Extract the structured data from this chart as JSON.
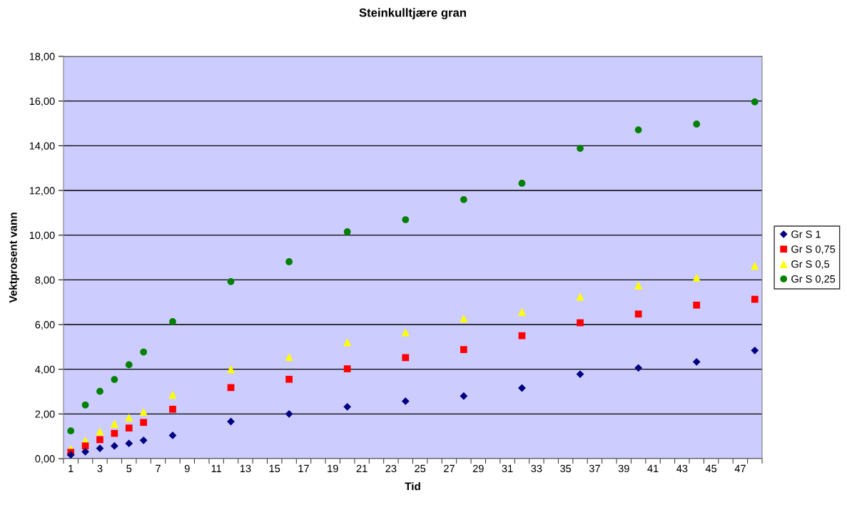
{
  "chart_data": {
    "type": "scatter",
    "title": "Steinkulltjære gran",
    "xlabel": "Tid",
    "ylabel": "Vektprosent vann",
    "x": [
      1,
      2,
      3,
      4,
      5,
      6,
      8,
      12,
      16,
      20,
      24,
      28,
      32,
      36,
      40,
      44,
      48
    ],
    "series": [
      {
        "name": "Gr S 1",
        "color": "#000080",
        "marker": "diamond",
        "values": [
          0.17,
          0.31,
          0.46,
          0.57,
          0.68,
          0.82,
          1.04,
          1.66,
          2.0,
          2.32,
          2.57,
          2.8,
          3.16,
          3.78,
          4.06,
          4.33,
          4.84
        ]
      },
      {
        "name": "Gr S 0,75",
        "color": "#ff0000",
        "marker": "square",
        "values": [
          0.28,
          0.57,
          0.85,
          1.13,
          1.37,
          1.62,
          2.21,
          3.18,
          3.55,
          4.02,
          4.52,
          4.88,
          5.5,
          6.08,
          6.47,
          6.87,
          7.13
        ]
      },
      {
        "name": "Gr S 0,5",
        "color": "#ffff00",
        "marker": "triangle",
        "values": [
          0.44,
          0.81,
          1.22,
          1.56,
          1.84,
          2.1,
          2.86,
          4.0,
          4.55,
          5.21,
          5.65,
          6.27,
          6.57,
          7.25,
          7.75,
          8.1,
          8.63
        ]
      },
      {
        "name": "Gr S 0,25",
        "color": "#008000",
        "marker": "circle",
        "values": [
          1.24,
          2.4,
          3.01,
          3.54,
          4.2,
          4.77,
          6.13,
          7.92,
          8.81,
          10.15,
          10.69,
          11.59,
          12.32,
          13.88,
          14.71,
          14.97,
          15.96
        ]
      }
    ],
    "xlim": [
      0.5,
      48.5
    ],
    "xticks": [
      {
        "value": 1,
        "label": "1"
      },
      {
        "value": 3,
        "label": "3"
      },
      {
        "value": 5,
        "label": "5"
      },
      {
        "value": 7,
        "label": "7"
      },
      {
        "value": 9,
        "label": "9"
      },
      {
        "value": 11,
        "label": "11"
      },
      {
        "value": 13,
        "label": "13"
      },
      {
        "value": 15,
        "label": "15"
      },
      {
        "value": 17,
        "label": "17"
      },
      {
        "value": 19,
        "label": "19"
      },
      {
        "value": 21,
        "label": "21"
      },
      {
        "value": 23,
        "label": "23"
      },
      {
        "value": 25,
        "label": "25"
      },
      {
        "value": 27,
        "label": "27"
      },
      {
        "value": 29,
        "label": "29"
      },
      {
        "value": 31,
        "label": "31"
      },
      {
        "value": 33,
        "label": "33"
      },
      {
        "value": 35,
        "label": "35"
      },
      {
        "value": 37,
        "label": "37"
      },
      {
        "value": 39,
        "label": "39"
      },
      {
        "value": 41,
        "label": "41"
      },
      {
        "value": 43,
        "label": "43"
      },
      {
        "value": 45,
        "label": "45"
      },
      {
        "value": 47,
        "label": "47"
      }
    ],
    "ylim": [
      0,
      18
    ],
    "yticks": [
      {
        "value": 0,
        "label": "0,00"
      },
      {
        "value": 2,
        "label": "2,00"
      },
      {
        "value": 4,
        "label": "4,00"
      },
      {
        "value": 6,
        "label": "6,00"
      },
      {
        "value": 8,
        "label": "8,00"
      },
      {
        "value": 10,
        "label": "10,00"
      },
      {
        "value": 12,
        "label": "12,00"
      },
      {
        "value": 14,
        "label": "14,00"
      },
      {
        "value": 16,
        "label": "16,00"
      },
      {
        "value": 18,
        "label": "18,00"
      }
    ],
    "grid": "y",
    "legend": "right"
  }
}
